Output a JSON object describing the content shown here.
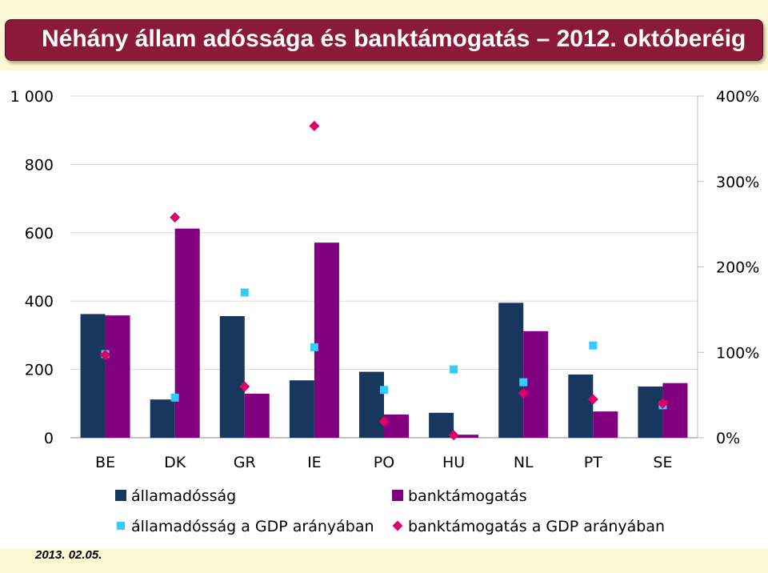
{
  "header": {
    "title": "Néhány állam adóssága és banktámogatás – 2012. októberéig"
  },
  "footer": {
    "date": "2013. 02.05."
  },
  "chart_data": {
    "type": "bar",
    "title": "Néhány állam adóssága és banktámogatás – 2012. októberéig",
    "categories": [
      "BE",
      "DK",
      "GR",
      "IE",
      "PO",
      "HU",
      "NL",
      "PT",
      "SE"
    ],
    "series": [
      {
        "name": "államadósság",
        "kind": "bar",
        "axis": "left",
        "color": "#17375e",
        "values": [
          362,
          112,
          356,
          168,
          193,
          73,
          395,
          185,
          150
        ]
      },
      {
        "name": "banktámogatás",
        "kind": "bar",
        "axis": "left",
        "color": "#800080",
        "values": [
          358,
          612,
          129,
          571,
          68,
          9,
          312,
          77,
          160
        ]
      },
      {
        "name": "államadósság a GDP arányában",
        "kind": "marker",
        "marker": "square",
        "axis": "right",
        "color": "#33ccff",
        "values": [
          98,
          47,
          170,
          106,
          56,
          80,
          65,
          108,
          38
        ]
      },
      {
        "name": "banktámogatás a GDP arányában",
        "kind": "marker",
        "marker": "diamond",
        "axis": "right",
        "color": "#e0006a",
        "values": [
          97,
          258,
          60,
          365,
          19,
          3,
          52,
          45,
          40
        ]
      }
    ],
    "y_left": {
      "range": [
        0,
        1000
      ],
      "ticks": [
        0,
        200,
        400,
        600,
        800,
        1000
      ],
      "tick_labels": [
        "0",
        "200",
        "400",
        "600",
        "800",
        "1 000"
      ]
    },
    "y_right": {
      "range": [
        0,
        400
      ],
      "ticks": [
        0,
        100,
        200,
        300,
        400
      ],
      "tick_labels": [
        "0%",
        "100%",
        "200%",
        "300%",
        "400%"
      ]
    },
    "grid": true,
    "legend": "bottom"
  }
}
